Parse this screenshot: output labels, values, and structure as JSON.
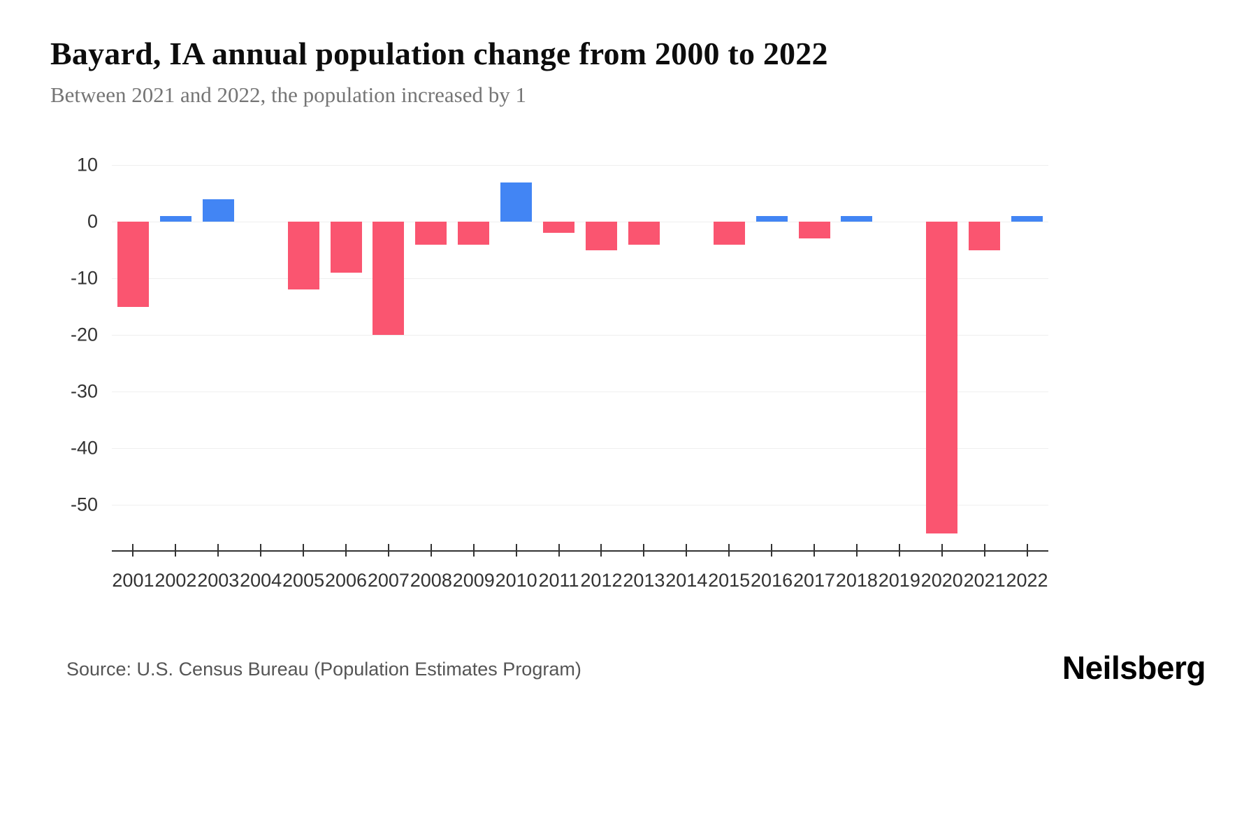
{
  "chart_data": {
    "type": "bar",
    "title": "Bayard, IA annual population change from 2000 to 2022",
    "subtitle": "Between 2021 and 2022, the population increased by 1",
    "categories": [
      "2001",
      "2002",
      "2003",
      "2004",
      "2005",
      "2006",
      "2007",
      "2008",
      "2009",
      "2010",
      "2011",
      "2012",
      "2013",
      "2014",
      "2015",
      "2016",
      "2017",
      "2018",
      "2019",
      "2020",
      "2021",
      "2022"
    ],
    "values": [
      -15,
      1,
      4,
      0,
      -12,
      -9,
      -20,
      -4,
      -4,
      7,
      -2,
      -5,
      -4,
      0,
      -4,
      1,
      -3,
      1,
      0,
      -55,
      -5,
      1
    ],
    "xlabel": "",
    "ylabel": "",
    "ylim": [
      -58,
      12
    ],
    "yticks": [
      10,
      0,
      -10,
      -20,
      -30,
      -40,
      -50
    ],
    "grid": true,
    "legend": "none",
    "positive_color": "#4285f4",
    "negative_color": "#fa5570"
  },
  "footer": {
    "source": "Source: U.S. Census Bureau (Population Estimates Program)",
    "brand": "Neilsberg"
  }
}
